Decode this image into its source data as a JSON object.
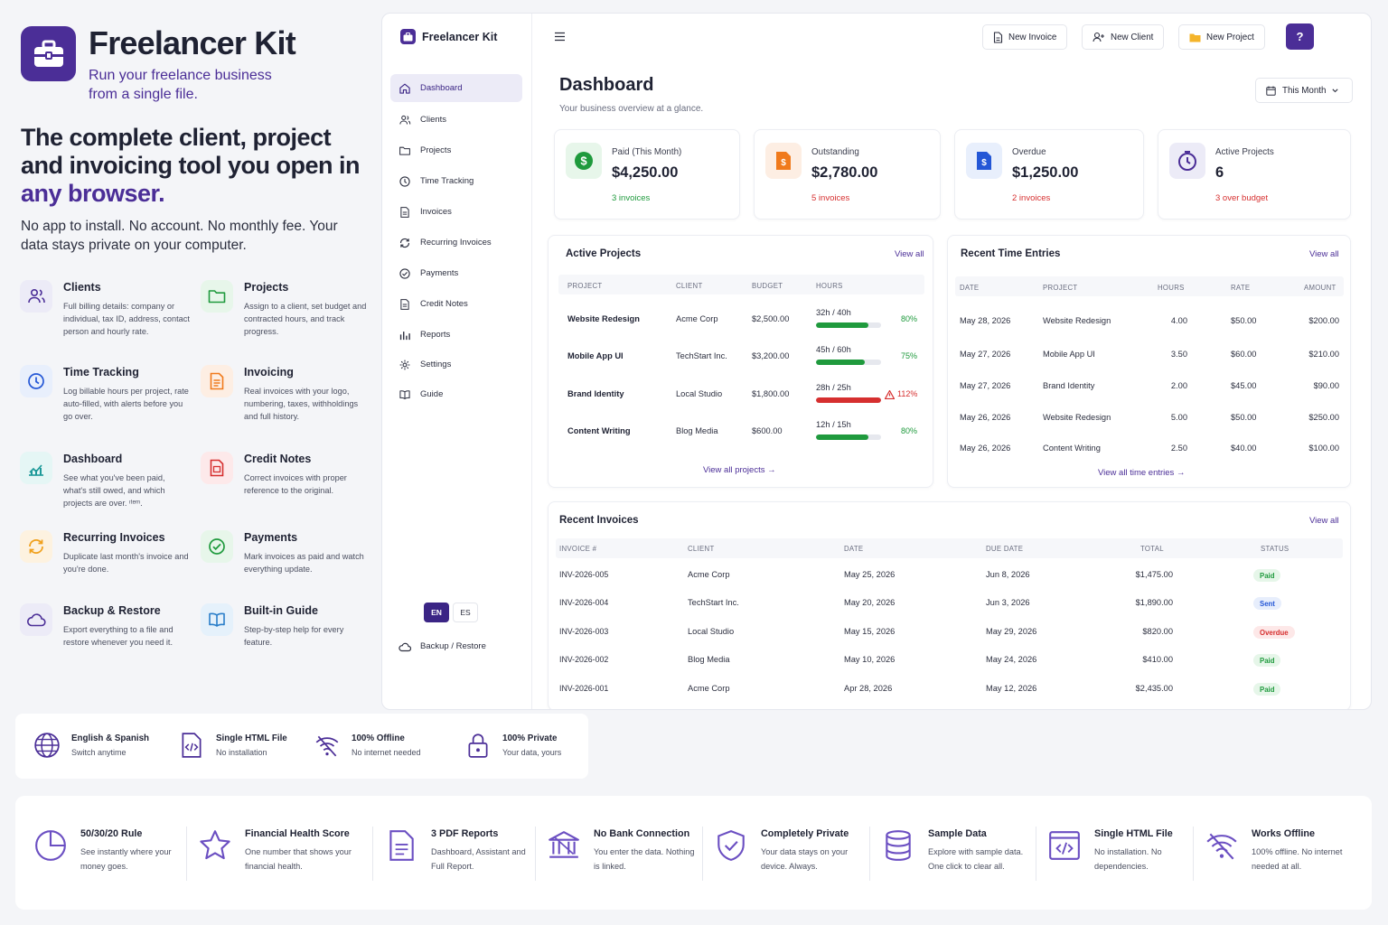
{
  "brand": {
    "name": "Freelancer Kit",
    "tagline": "Run your freelance business from a single file.",
    "headline_a": "The complete client, project and invoicing tool you open in ",
    "headline_b": "any browser.",
    "subhead": "No app to install. No account. No monthly fee. Your data stays private on your computer."
  },
  "features": [
    {
      "title": "Clients",
      "desc": "Full billing details: company or individual, tax ID, address, contact person and hourly rate.",
      "icon": "users-icon"
    },
    {
      "title": "Projects",
      "desc": "Assign to a client, set budget and contracted hours, and track progress.",
      "icon": "folder-icon"
    },
    {
      "title": "Time Tracking",
      "desc": "Log billable hours per project, rate auto-filled, with alerts before you go over.",
      "icon": "clock-icon"
    },
    {
      "title": "Invoicing",
      "desc": "Real invoices with your logo, numbering, taxes, withholdings and full history.",
      "icon": "invoice-icon"
    },
    {
      "title": "Dashboard",
      "desc": "See what you've been paid, what's still owed, and which projects are over. ᶦᵗᵉᵐ.",
      "icon": "chart-icon"
    },
    {
      "title": "Credit Notes",
      "desc": "Correct invoices with proper reference to the original.",
      "icon": "credit-note-icon"
    },
    {
      "title": "Recurring Invoices",
      "desc": "Duplicate last month's invoice and you're done.",
      "icon": "recurring-icon"
    },
    {
      "title": "Payments",
      "desc": "Mark invoices as paid and watch everything update.",
      "icon": "check-circle-icon"
    },
    {
      "title": "Backup & Restore",
      "desc": "Export everything to a file and restore whenever you need it.",
      "icon": "cloud-icon"
    },
    {
      "title": "Built-in Guide",
      "desc": "Step-by-step help for every feature.",
      "icon": "book-icon"
    }
  ],
  "app": {
    "title": "Freelancer Kit",
    "nav": [
      {
        "label": "Dashboard",
        "icon": "home-icon"
      },
      {
        "label": "Clients",
        "icon": "users-icon"
      },
      {
        "label": "Projects",
        "icon": "folder-icon"
      },
      {
        "label": "Time Tracking",
        "icon": "clock-icon"
      },
      {
        "label": "Invoices",
        "icon": "file-icon"
      },
      {
        "label": "Recurring Invoices",
        "icon": "recurring-icon"
      },
      {
        "label": "Payments",
        "icon": "check-circle-icon"
      },
      {
        "label": "Credit Notes",
        "icon": "file-icon"
      },
      {
        "label": "Reports",
        "icon": "bar-chart-icon"
      },
      {
        "label": "Settings",
        "icon": "gear-icon"
      },
      {
        "label": "Guide",
        "icon": "book-icon"
      }
    ],
    "lang": {
      "en": "EN",
      "es": "ES"
    },
    "backup_label": "Backup / Restore",
    "toolbar": {
      "new_invoice": "New Invoice",
      "new_client": "New Client",
      "new_project": "New Project",
      "help": "?"
    },
    "page_title": "Dashboard",
    "page_subtitle": "Your business overview at a glance.",
    "period": "This Month",
    "kpis": [
      {
        "label": "Paid (This Month)",
        "value": "$4,250.00",
        "sub": "3 invoices",
        "color": "#1f9a3d"
      },
      {
        "label": "Outstanding",
        "value": "$2,780.00",
        "sub": "5 invoices",
        "color": "#d62f2f"
      },
      {
        "label": "Overdue",
        "value": "$1,250.00",
        "sub": "2 invoices",
        "color": "#d62f2f"
      },
      {
        "label": "Active Projects",
        "value": "6",
        "sub": "3 over budget",
        "color": "#d62f2f"
      }
    ],
    "active_projects": {
      "title": "Active Projects",
      "view_all": "View all",
      "columns": [
        "Project",
        "Client",
        "Budget",
        "Hours"
      ],
      "rows": [
        {
          "project": "Website Redesign",
          "client": "Acme Corp",
          "budget": "$2,500.00",
          "hours": "32h / 40h",
          "pct": "80%",
          "progress": 0.8,
          "over": false
        },
        {
          "project": "Mobile App UI",
          "client": "TechStart Inc.",
          "budget": "$3,200.00",
          "hours": "45h / 60h",
          "pct": "75%",
          "progress": 0.75,
          "over": false
        },
        {
          "project": "Brand Identity",
          "client": "Local Studio",
          "budget": "$1,800.00",
          "hours": "28h / 25h",
          "pct": "112%",
          "progress": 1.0,
          "over": true
        },
        {
          "project": "Content Writing",
          "client": "Blog Media",
          "budget": "$600.00",
          "hours": "12h / 15h",
          "pct": "80%",
          "progress": 0.8,
          "over": false
        }
      ],
      "footer": "View all projects →"
    },
    "time_entries": {
      "title": "Recent Time Entries",
      "view_all": "View all",
      "columns": [
        "Date",
        "Project",
        "Hours",
        "Rate",
        "Amount"
      ],
      "rows": [
        {
          "date": "May 28, 2026",
          "project": "Website Redesign",
          "hours": "4.00",
          "rate": "$50.00",
          "amount": "$200.00"
        },
        {
          "date": "May 27, 2026",
          "project": "Mobile App UI",
          "hours": "3.50",
          "rate": "$60.00",
          "amount": "$210.00"
        },
        {
          "date": "May 27, 2026",
          "project": "Brand Identity",
          "hours": "2.00",
          "rate": "$45.00",
          "amount": "$90.00"
        },
        {
          "date": "May 26, 2026",
          "project": "Website Redesign",
          "hours": "5.00",
          "rate": "$50.00",
          "amount": "$250.00"
        },
        {
          "date": "May 26, 2026",
          "project": "Content Writing",
          "hours": "2.50",
          "rate": "$40.00",
          "amount": "$100.00"
        }
      ],
      "footer": "View all time entries →"
    },
    "invoices": {
      "title": "Recent Invoices",
      "view_all": "View all",
      "columns": [
        "Invoice #",
        "Client",
        "Date",
        "Due Date",
        "Total",
        "Status"
      ],
      "rows": [
        {
          "num": "INV-2026-005",
          "client": "Acme Corp",
          "date": "May 25, 2026",
          "due": "Jun 8, 2026",
          "total": "$1,475.00",
          "status": "Paid"
        },
        {
          "num": "INV-2026-004",
          "client": "TechStart Inc.",
          "date": "May 20, 2026",
          "due": "Jun 3, 2026",
          "total": "$1,890.00",
          "status": "Sent"
        },
        {
          "num": "INV-2026-003",
          "client": "Local Studio",
          "date": "May 15, 2026",
          "due": "May 29, 2026",
          "total": "$820.00",
          "status": "Overdue"
        },
        {
          "num": "INV-2026-002",
          "client": "Blog Media",
          "date": "May 10, 2026",
          "due": "May 24, 2026",
          "total": "$410.00",
          "status": "Paid"
        },
        {
          "num": "INV-2026-001",
          "client": "Acme Corp",
          "date": "Apr 28, 2026",
          "due": "May 12, 2026",
          "total": "$2,435.00",
          "status": "Paid"
        }
      ]
    }
  },
  "badges": [
    {
      "title": "English & Spanish",
      "desc": "Switch anytime",
      "icon": "globe-icon"
    },
    {
      "title": "Single HTML File",
      "desc": "No installation",
      "icon": "code-file-icon"
    },
    {
      "title": "100% Offline",
      "desc": "No internet needed",
      "icon": "wifi-off-icon"
    },
    {
      "title": "100% Private",
      "desc": "Your data, yours",
      "icon": "lock-icon"
    }
  ],
  "bottom_features": [
    {
      "title": "50/30/20 Rule",
      "desc": "See instantly where your money goes.",
      "icon": "pie-icon"
    },
    {
      "title": "Financial Health Score",
      "desc": "One number that shows your financial health.",
      "icon": "star-icon"
    },
    {
      "title": "3 PDF Reports",
      "desc": "Dashboard, Assistant and Full Report.",
      "icon": "document-icon"
    },
    {
      "title": "No Bank Connection",
      "desc": "You enter the data. Nothing is linked.",
      "icon": "bank-icon"
    },
    {
      "title": "Completely Private",
      "desc": "Your data stays on your device. Always.",
      "icon": "shield-icon"
    },
    {
      "title": "Sample Data",
      "desc": "Explore with sample data. One click to clear all.",
      "icon": "database-icon"
    },
    {
      "title": "Single HTML File",
      "desc": "No installation. No dependencies.",
      "icon": "code-window-icon"
    },
    {
      "title": "Works Offline",
      "desc": "100% offline. No internet needed at all.",
      "icon": "wifi-off-icon"
    }
  ],
  "colors": {
    "accent": "#4b2e97",
    "green": "#1f9a3d",
    "red": "#d62f2f",
    "orange": "#f08a1c",
    "blue": "#2457d6"
  }
}
